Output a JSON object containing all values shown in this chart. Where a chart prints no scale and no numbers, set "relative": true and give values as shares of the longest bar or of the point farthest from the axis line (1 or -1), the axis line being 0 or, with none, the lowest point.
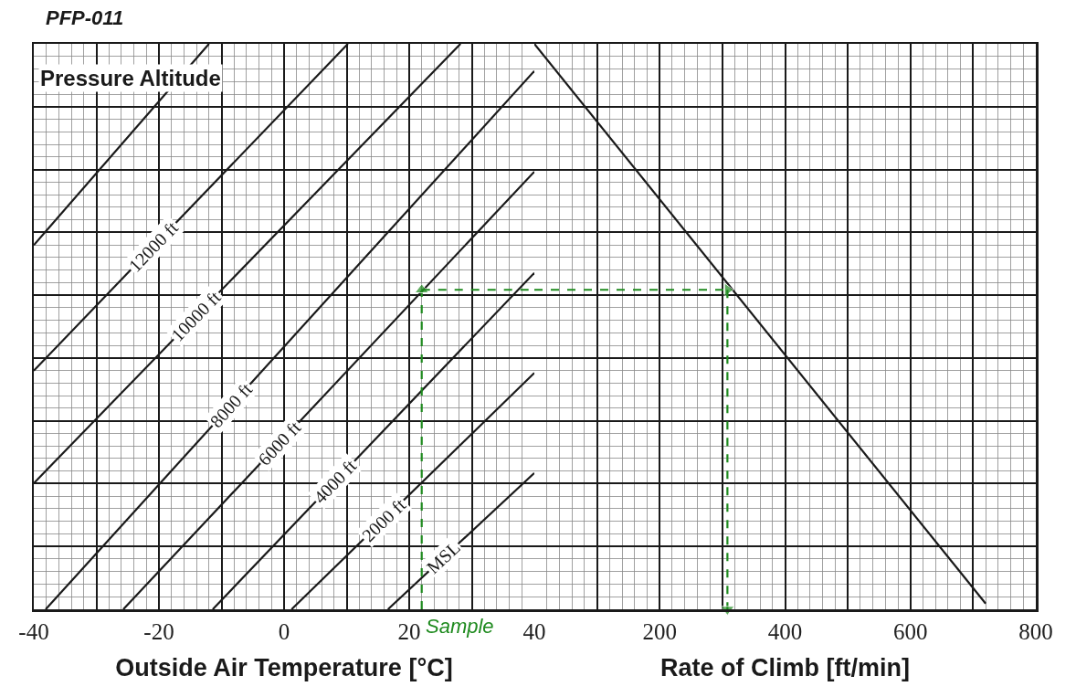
{
  "chart_data": [
    {
      "type": "line",
      "title": "PFP-011",
      "xlabel": "Outside Air Temperature [°C]",
      "annotations": [
        "Pressure Altitude",
        {
          "text": "Sample",
          "x": 22,
          "y": 0
        }
      ],
      "xlim": [
        -40,
        40
      ],
      "xticks": [
        -40,
        {
          "value": -30,
          "label": null
        },
        -20,
        {
          "value": -10,
          "label": null
        },
        0,
        {
          "value": 10,
          "label": null
        },
        20,
        {
          "value": 30,
          "label": null
        },
        40
      ],
      "relative": true,
      "grid": true,
      "tick_labels": "x",
      "series": [
        {
          "name": "MSL",
          "color": "#1a1a1a",
          "x": [
            16.6,
            40
          ],
          "values": [
            0,
            0.241
          ]
        },
        {
          "name": "2000 ft",
          "color": "#1a1a1a",
          "x": [
            1.2,
            40
          ],
          "values": [
            0,
            0.418
          ]
        },
        {
          "name": "4000 ft",
          "color": "#1a1a1a",
          "x": [
            -11.4,
            40
          ],
          "values": [
            0,
            0.595
          ]
        },
        {
          "name": "6000 ft",
          "color": "#1a1a1a",
          "x": [
            -25.7,
            40
          ],
          "values": [
            0,
            0.774
          ]
        },
        {
          "name": "8000 ft",
          "color": "#1a1a1a",
          "x": [
            -38.1,
            40
          ],
          "values": [
            0,
            0.952
          ]
        },
        {
          "name": "10000 ft",
          "color": "#1a1a1a",
          "x": [
            -40,
            28.2
          ],
          "values": [
            0.223,
            1
          ]
        },
        {
          "name": "12000 ft",
          "color": "#1a1a1a",
          "x": [
            -40,
            10.2
          ],
          "values": [
            0.422,
            1
          ]
        },
        {
          "color": "#1a1a1a",
          "x": [
            -40,
            -12
          ],
          "values": [
            0.644,
            1
          ]
        },
        {
          "color": "#1e8a1e",
          "x": [
            22,
            22
          ],
          "values": [
            0,
            0.565
          ],
          "line_style": "dashed",
          "marker": "triangle"
        },
        {
          "color": "#1e8a1e",
          "x": [
            22,
            40
          ],
          "values": [
            0.565,
            0.565
          ],
          "line_style": "dashed"
        }
      ]
    },
    {
      "type": "line",
      "xlabel": "Rate of Climb [ft/min]",
      "xlim": [
        0,
        800
      ],
      "xticks": [
        {
          "value": 0,
          "label": null
        },
        {
          "value": 100,
          "label": null
        },
        200,
        {
          "value": 300,
          "label": null
        },
        400,
        {
          "value": 500,
          "label": null
        },
        600,
        {
          "value": 700,
          "label": null
        },
        800
      ],
      "relative": true,
      "grid": true,
      "tick_labels": "x",
      "series": [
        {
          "color": "#1a1a1a",
          "x": [
            0,
            720
          ],
          "values": [
            1,
            0.01
          ]
        },
        {
          "color": "#1e8a1e",
          "x": [
            0,
            308
          ],
          "values": [
            0.565,
            0.565
          ],
          "line_style": "dashed",
          "marker": "triangle"
        },
        {
          "color": "#1e8a1e",
          "x": [
            308,
            308
          ],
          "values": [
            0.565,
            0
          ],
          "line_style": "dashed",
          "marker": "triangle"
        }
      ]
    }
  ]
}
